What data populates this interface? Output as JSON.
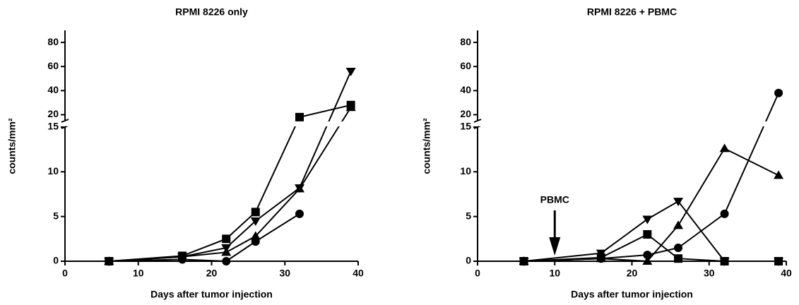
{
  "chart_data": [
    {
      "type": "line",
      "title": "RPMI 8226 only",
      "xlabel": "Days after tumor injection",
      "ylabel": "counts/mm²",
      "x": [
        6,
        16,
        22,
        26,
        32,
        39
      ],
      "series": [
        {
          "marker": "square",
          "color": "#000000",
          "values": [
            0,
            0.6,
            2.5,
            5.5,
            18,
            28
          ]
        },
        {
          "marker": "triangle-down",
          "color": "#000000",
          "values": [
            0,
            0.5,
            1.5,
            4.5,
            8.2,
            56
          ]
        },
        {
          "marker": "triangle-up",
          "color": "#000000",
          "values": [
            0,
            0.5,
            1.0,
            2.8,
            8.1,
            26
          ]
        },
        {
          "marker": "circle",
          "color": "#000000",
          "values": [
            0,
            0.2,
            0,
            2.2,
            5.3,
            null
          ]
        }
      ],
      "xlim": [
        0,
        40
      ],
      "xticks": [
        0,
        10,
        20,
        30,
        40
      ],
      "ylim": [
        0,
        90
      ],
      "ybreak": 15,
      "yticks": [
        0,
        5,
        10,
        15,
        20,
        40,
        60,
        80
      ]
    },
    {
      "type": "line",
      "title": "RPMI 8226 +  PBMC",
      "xlabel": "Days after tumor injection",
      "ylabel": "counts/mm²",
      "x": [
        6,
        16,
        22,
        26,
        32,
        39
      ],
      "series": [
        {
          "marker": "circle",
          "color": "#000000",
          "values": [
            0,
            0.3,
            0.7,
            1.5,
            5.3,
            38
          ]
        },
        {
          "marker": "triangle-up",
          "color": "#000000",
          "values": [
            0,
            0.3,
            0,
            4.0,
            12.6,
            9.6
          ]
        },
        {
          "marker": "triangle-down",
          "color": "#000000",
          "values": [
            0,
            0.9,
            4.7,
            6.7,
            0,
            0
          ]
        },
        {
          "marker": "square",
          "color": "#000000",
          "values": [
            0,
            0.4,
            3.0,
            0.3,
            0,
            0
          ]
        }
      ],
      "annotation": {
        "text": "PBMC",
        "x": 10
      },
      "xlim": [
        0,
        40
      ],
      "xticks": [
        0,
        10,
        20,
        30,
        40
      ],
      "ylim": [
        0,
        90
      ],
      "ybreak": 15,
      "yticks": [
        0,
        5,
        10,
        15,
        20,
        40,
        60,
        80
      ]
    }
  ]
}
